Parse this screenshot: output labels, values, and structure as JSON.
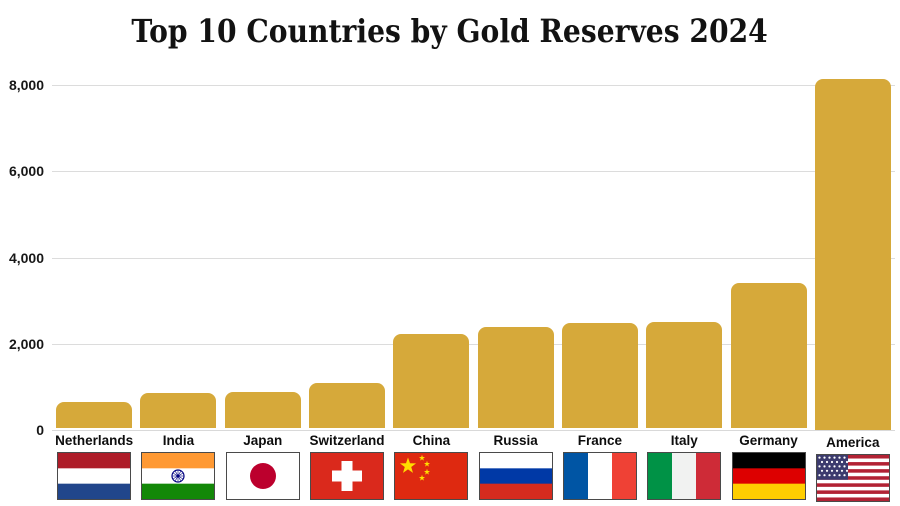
{
  "title": "Top 10 Countries by Gold Reserves 2024",
  "chart_data": {
    "type": "bar",
    "title": "Top 10 Countries by Gold Reserves 2024",
    "categories": [
      "Netherlands",
      "India",
      "Japan",
      "Switzerland",
      "China",
      "Russia",
      "France",
      "Italy",
      "Germany",
      "America"
    ],
    "values": [
      612,
      822,
      846,
      1040,
      2181,
      2333,
      2437,
      2452,
      3352,
      8133
    ],
    "flags": [
      "nl",
      "in",
      "jp",
      "ch",
      "cn",
      "ru",
      "fr",
      "it",
      "de",
      "us"
    ],
    "flag_icon_names": [
      "netherlands-flag-icon",
      "india-flag-icon",
      "japan-flag-icon",
      "switzerland-flag-icon",
      "china-flag-icon",
      "russia-flag-icon",
      "france-flag-icon",
      "italy-flag-icon",
      "germany-flag-icon",
      "america-flag-icon"
    ],
    "xlabel": "",
    "ylabel": "",
    "ylim": [
      0,
      8400
    ],
    "yticks": [
      0,
      2000,
      4000,
      6000,
      8000
    ],
    "ytick_labels": [
      "0",
      "2,000",
      "4,000",
      "6,000",
      "8,000"
    ],
    "grid": true,
    "legend": false,
    "bar_color": "#d6a93a"
  },
  "colors": {
    "bar": "#d6a93a",
    "gridline": "#dcdcdc",
    "title_text": "#121212",
    "axis_text": "#171717",
    "label_text": "#0d0d0d",
    "background": "#ffffff"
  }
}
